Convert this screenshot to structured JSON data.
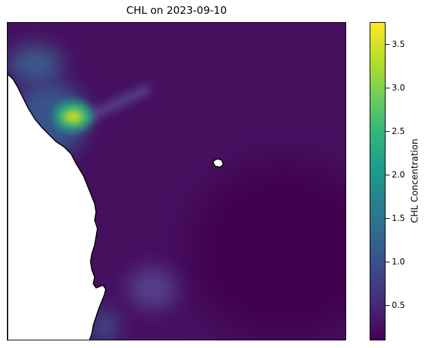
{
  "title": "CHL on 2023-09-10",
  "colorbar": {
    "label": "CHL Concentration",
    "min": 0.1,
    "max": 3.75,
    "ticks": [
      "0.5",
      "1.0",
      "1.5",
      "2.0",
      "2.5",
      "3.0",
      "3.5"
    ],
    "colormap": "viridis"
  },
  "map": {
    "background_level": 0.25,
    "land_color": "#ffffff",
    "coastline_color": "#000000",
    "features": [
      {
        "name": "coastal-bloom-hotspot",
        "level": 3.6
      },
      {
        "name": "northwest-coastal-plume",
        "level": 1.2
      },
      {
        "name": "offshore-filament",
        "level": 0.6
      },
      {
        "name": "southern-coastal-patch",
        "level": 0.7
      }
    ]
  }
}
